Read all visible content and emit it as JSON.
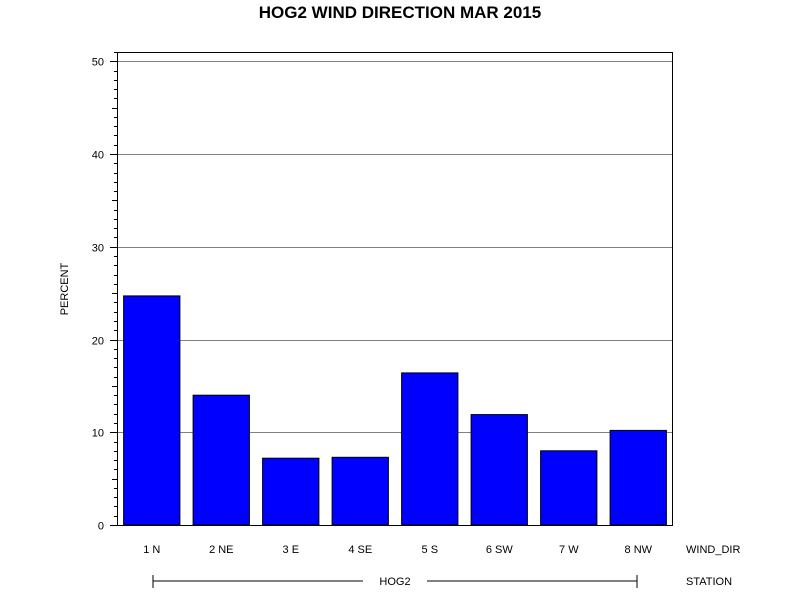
{
  "chart_data": {
    "type": "bar",
    "title": "HOG2 WIND DIRECTION MAR 2015",
    "ylabel": "PERCENT",
    "xlabel": "WIND_DIR",
    "group_axis_label": "STATION",
    "group_label": "HOG2",
    "categories": [
      "1 N",
      "2 NE",
      "3 E",
      "4 SE",
      "5 S",
      "6 SW",
      "7 W",
      "8 NW"
    ],
    "values": [
      24.7,
      14.0,
      7.2,
      7.3,
      16.4,
      11.9,
      8.0,
      10.2
    ],
    "ylim": [
      0,
      51
    ],
    "yticks": [
      0,
      10,
      20,
      30,
      40,
      50
    ],
    "grid": true,
    "colors": {
      "bar": "#0000ff",
      "grid": "#808080",
      "axis": "#000000"
    }
  }
}
